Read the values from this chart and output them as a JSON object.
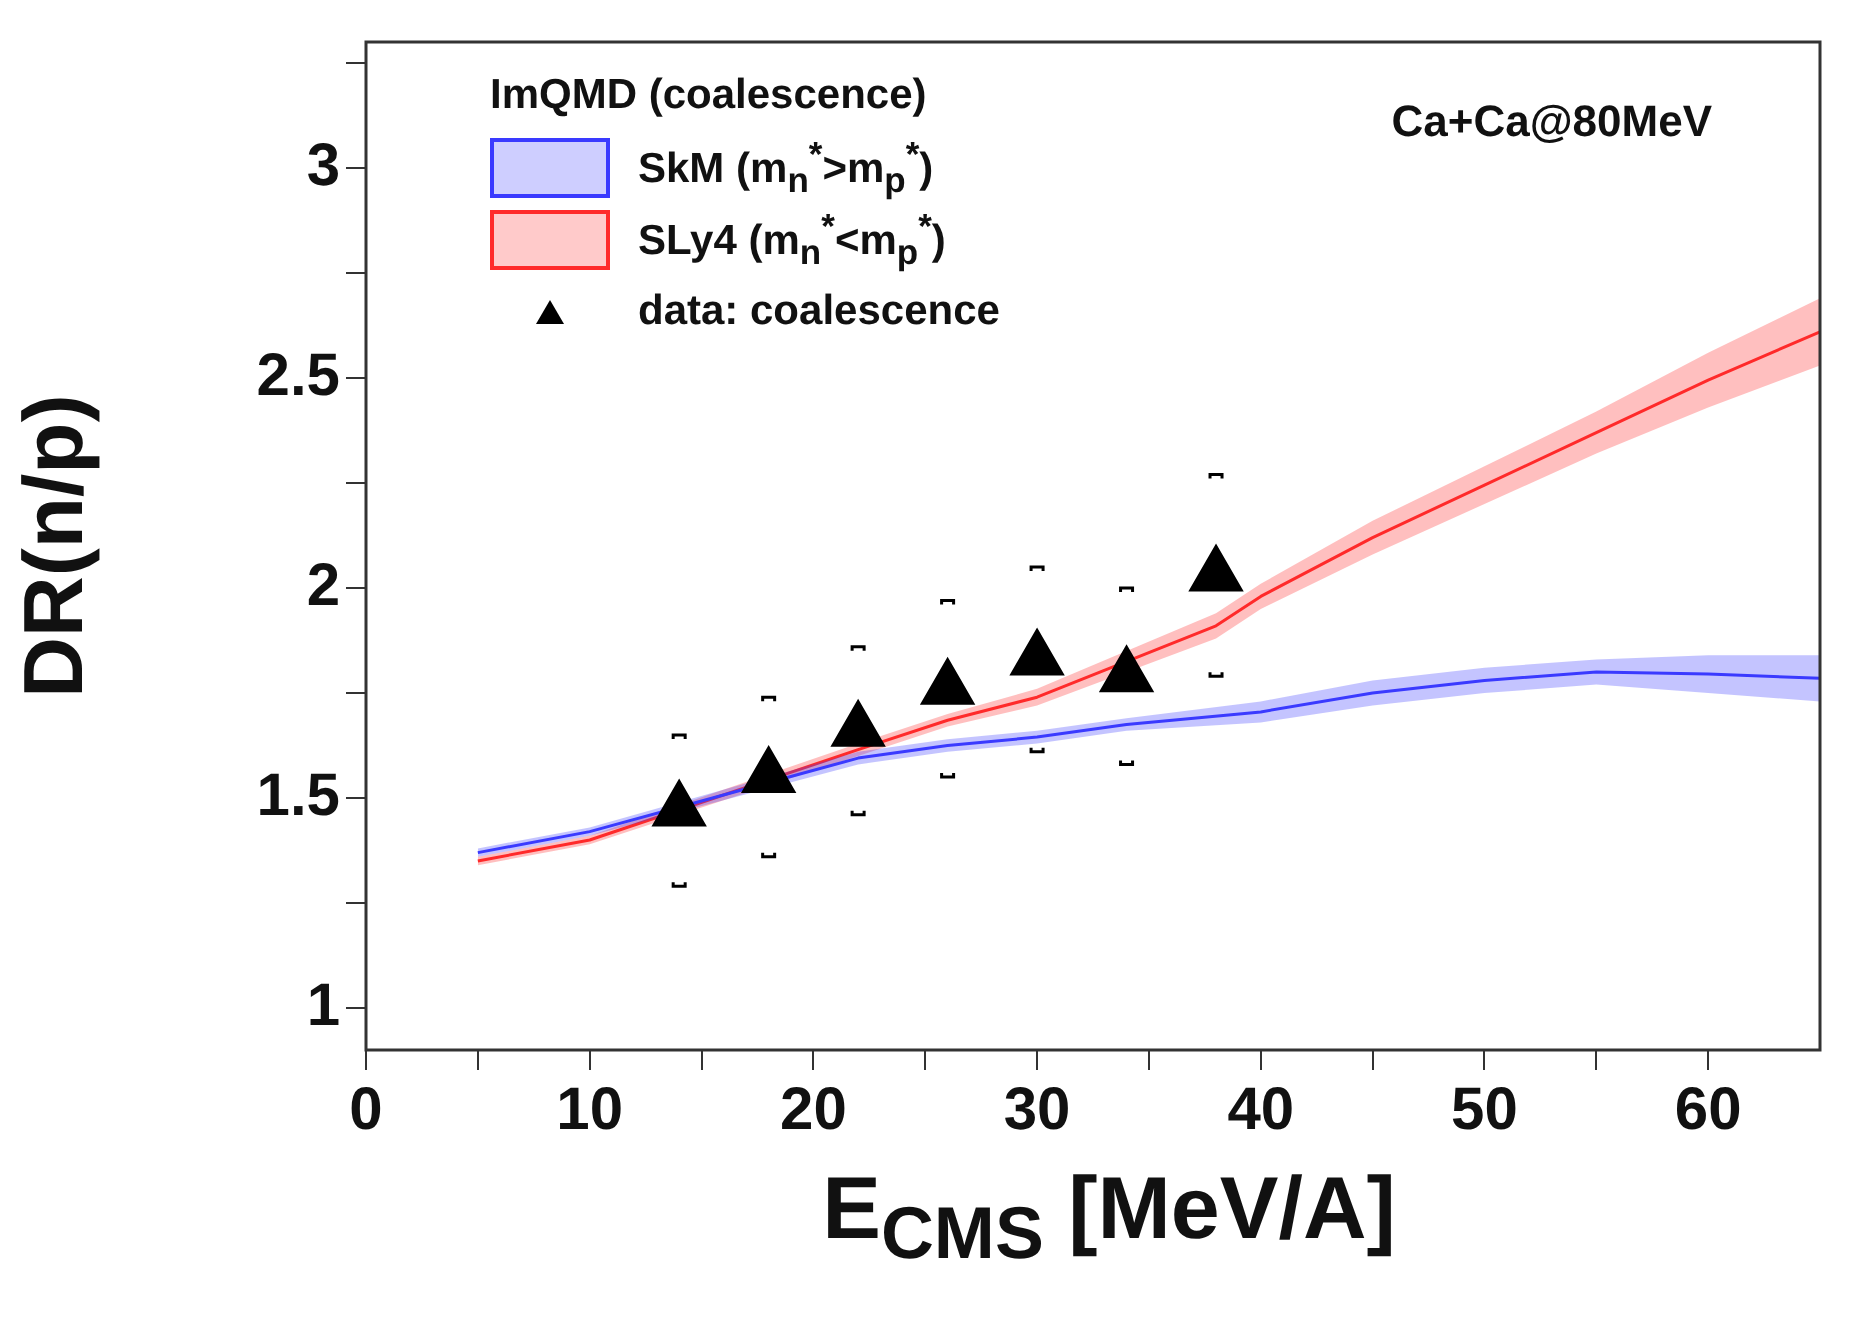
{
  "chart_data": {
    "type": "line",
    "xlabel": "E$_{CMS}$ [MeV/A]",
    "ylabel": "DR(n/p)",
    "legend_title": "ImQMD (coalescence)",
    "legend": "top left",
    "grid": false,
    "xlim": [
      0,
      65
    ],
    "xticks": [
      0,
      {
        "value": 5,
        "label": null
      },
      10,
      {
        "value": 15,
        "label": null
      },
      20,
      {
        "value": 25,
        "label": null
      },
      30,
      {
        "value": 35,
        "label": null
      },
      40,
      {
        "value": 45,
        "label": null
      },
      50,
      {
        "value": 55,
        "label": null
      },
      60
    ],
    "ylim": [
      0.9,
      3.3
    ],
    "yticks": [
      1,
      {
        "value": 1.25,
        "label": null
      },
      1.5,
      {
        "value": 1.75,
        "label": null
      },
      2,
      {
        "value": 2.25,
        "label": null
      },
      2.5,
      {
        "value": 2.75,
        "label": null
      },
      3,
      {
        "value": 3.25,
        "label": null
      }
    ],
    "annotations": [
      "Ca+Ca@80MeV"
    ],
    "series": [
      {
        "name": "SkM (m$_{n}$$^{*}$>m$_{p}$$^{*}$)",
        "color": "#3a3aff",
        "x": [
          5,
          10,
          22,
          26,
          30,
          34,
          40,
          45,
          50,
          55,
          60,
          65
        ],
        "values": [
          1.37,
          1.42,
          1.595,
          1.625,
          1.645,
          1.675,
          1.705,
          1.75,
          1.78,
          1.8,
          1.795,
          1.785
        ],
        "lower": [
          1.36,
          1.41,
          1.58,
          1.61,
          1.63,
          1.66,
          1.68,
          1.72,
          1.75,
          1.77,
          1.75,
          1.73
        ],
        "upper": [
          1.38,
          1.43,
          1.61,
          1.64,
          1.66,
          1.69,
          1.73,
          1.78,
          1.81,
          1.83,
          1.84,
          1.84
        ]
      },
      {
        "name": "SLy4 (m$_{n}$$^{*}$<m$_{p}$$^{*}$)",
        "color": "#ff2a2a",
        "x": [
          5,
          10,
          22,
          26,
          30,
          38,
          40,
          45,
          50,
          55,
          60,
          65
        ],
        "values": [
          1.35,
          1.4,
          1.615,
          1.685,
          1.74,
          1.91,
          1.98,
          2.12,
          2.245,
          2.37,
          2.495,
          2.61
        ],
        "lower": [
          1.34,
          1.39,
          1.6,
          1.67,
          1.72,
          1.88,
          1.95,
          2.08,
          2.2,
          2.32,
          2.43,
          2.53
        ],
        "upper": [
          1.36,
          1.41,
          1.63,
          1.7,
          1.76,
          1.94,
          2.01,
          2.16,
          2.29,
          2.42,
          2.56,
          2.69
        ]
      },
      {
        "name": "data: coalescence",
        "type": "scatter",
        "color": "#000000",
        "marker": "triangle",
        "x": [
          14,
          18,
          22,
          26,
          30,
          34,
          38
        ],
        "values": [
          1.47,
          1.55,
          1.66,
          1.76,
          1.83,
          1.79,
          2.03
        ],
        "errors": [
          0.18,
          0.19,
          0.2,
          0.21,
          0.22,
          0.21,
          0.24
        ]
      }
    ]
  }
}
